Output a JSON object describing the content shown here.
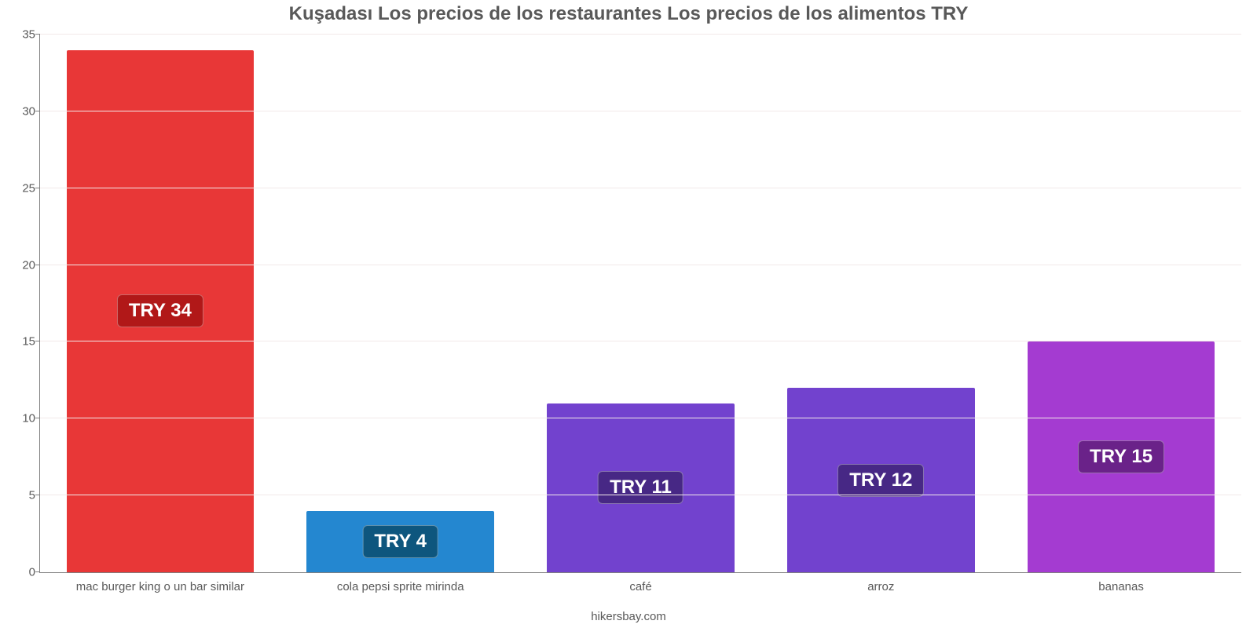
{
  "chart": {
    "type": "bar",
    "title": "Kuşadası Los precios de los restaurantes Los precios de los alimentos TRY",
    "title_fontsize": 24,
    "title_color": "#595959",
    "footer": "hikersbay.com",
    "footer_color": "#595959",
    "background_color": "#ffffff",
    "grid_color": "#f2e9e9",
    "axis_color": "#808080",
    "tick_label_color": "#595959",
    "tick_label_fontsize": 15,
    "x_label_fontsize": 15,
    "ylim": [
      0,
      35
    ],
    "ytick_step": 5,
    "yticks": [
      0,
      5,
      10,
      15,
      20,
      25,
      30,
      35
    ],
    "bar_width": 0.78,
    "value_label_fontsize": 24,
    "value_label_text_color": "#ffffff",
    "categories": [
      "mac burger king o un bar similar",
      "cola pepsi sprite mirinda",
      "café",
      "arroz",
      "bananas"
    ],
    "values": [
      34,
      4,
      11,
      12,
      15
    ],
    "value_labels": [
      "TRY 34",
      "TRY 4",
      "TRY 11",
      "TRY 12",
      "TRY 15"
    ],
    "bar_colors": [
      "#e83737",
      "#2487d0",
      "#7242ce",
      "#7242ce",
      "#a43bd1"
    ],
    "label_bg_colors": [
      "#b11818",
      "#0e567e",
      "#472885",
      "#472885",
      "#6a2289"
    ],
    "gridlines_at": [
      5,
      10,
      15,
      20,
      25,
      30,
      35
    ]
  }
}
